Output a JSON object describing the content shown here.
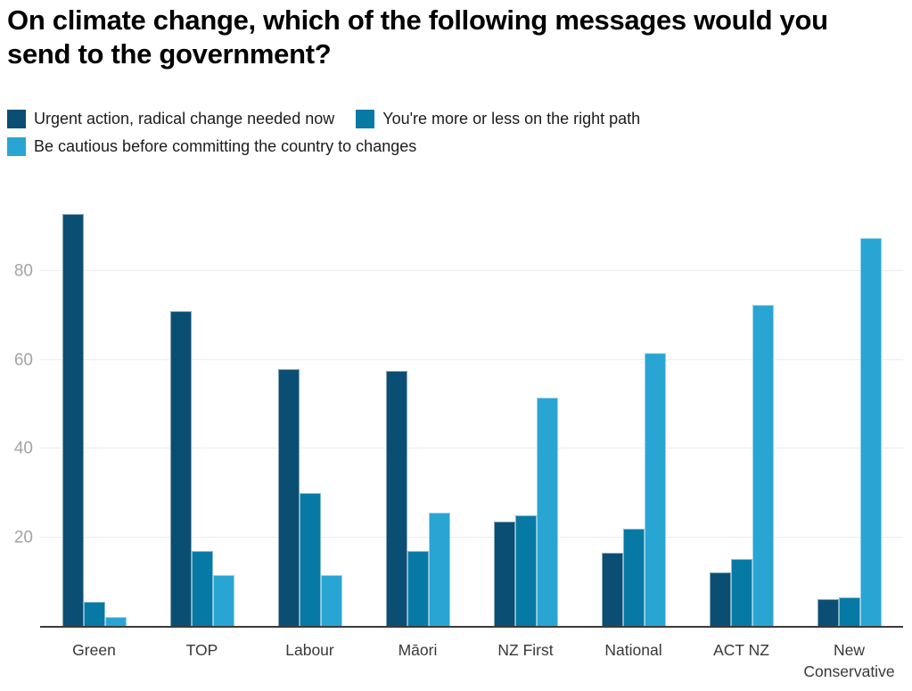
{
  "chart_data": {
    "type": "bar",
    "title": "On climate change, which of the following messages would you send to the government?",
    "categories": [
      "Green",
      "TOP",
      "Labour",
      "Māori",
      "NZ First",
      "National",
      "ACT NZ",
      "New Conservative"
    ],
    "series": [
      {
        "name": "Urgent action, radical change needed now",
        "color": "#0b4e73",
        "values": [
          93,
          71,
          58,
          57.5,
          23.5,
          16.5,
          12,
          6
        ]
      },
      {
        "name": "You're more or less on the right path",
        "color": "#0779a5",
        "values": [
          5.5,
          17,
          30,
          17,
          25,
          22,
          15,
          6.5
        ]
      },
      {
        "name": "Be cautious before committing the country to changes",
        "color": "#29a5d3",
        "values": [
          2,
          11.5,
          11.5,
          25.5,
          51.5,
          61.5,
          72.5,
          87.5
        ]
      }
    ],
    "ylim": [
      0,
      98
    ],
    "yticks": [
      20,
      40,
      60,
      80
    ],
    "xlabel": "",
    "ylabel": "",
    "grid": true,
    "grid_color": "#ebebeb",
    "axis_line_color": "#3b3b3b",
    "tick_label_color": "#a3a3a3",
    "category_label_color": "#383838",
    "legend_position": "top"
  }
}
